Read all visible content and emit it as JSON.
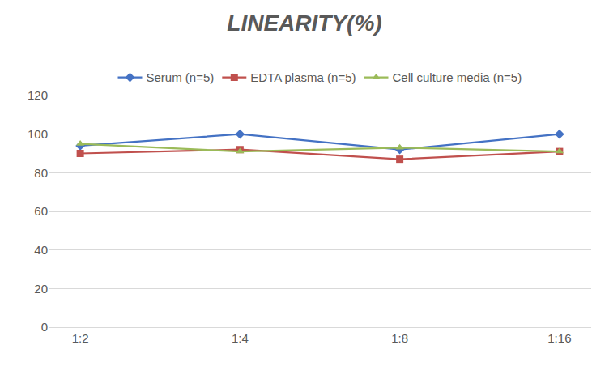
{
  "chart_data": {
    "type": "line",
    "title": "LINEARITY(%)",
    "categories": [
      "1:2",
      "1:4",
      "1:8",
      "1:16"
    ],
    "series": [
      {
        "name": "Serum (n=5)",
        "color": "#4472c4",
        "marker": "diamond",
        "values": [
          94,
          100,
          92,
          100
        ]
      },
      {
        "name": "EDTA plasma (n=5)",
        "color": "#c0504d",
        "marker": "square",
        "values": [
          90,
          92,
          87,
          91
        ]
      },
      {
        "name": "Cell culture media (n=5)",
        "color": "#9bbb59",
        "marker": "triangle-up",
        "values": [
          95,
          91,
          93,
          91
        ]
      }
    ],
    "ylim": [
      0,
      120
    ],
    "yticks": [
      0,
      20,
      40,
      60,
      80,
      100,
      120
    ],
    "grid": true,
    "legend": "top"
  }
}
